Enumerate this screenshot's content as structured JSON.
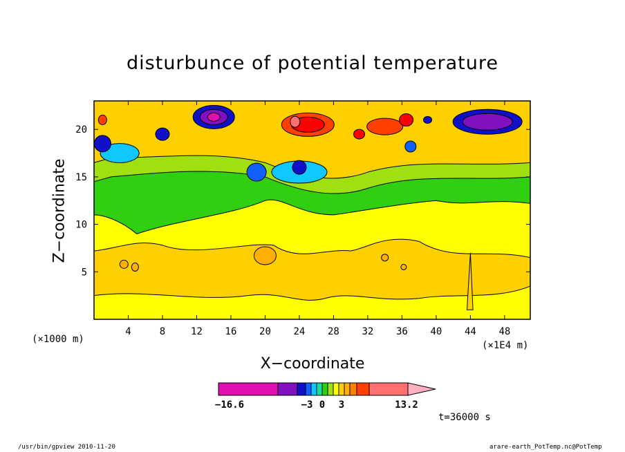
{
  "chart_data": {
    "type": "heatmap",
    "title": "disturbunce of potential temperature",
    "xlabel": "X−coordinate",
    "ylabel": "Z−coordinate",
    "x_unit_left": "(×1000 m)",
    "x_unit_right": "(×1E4 m)",
    "xlim": [
      0,
      51
    ],
    "ylim": [
      0,
      23
    ],
    "x_ticks": [
      4,
      8,
      12,
      16,
      20,
      24,
      28,
      32,
      36,
      40,
      44,
      48
    ],
    "y_ticks": [
      5,
      10,
      15,
      20
    ],
    "colorbar": {
      "levels": [
        -16.6,
        -3,
        0,
        3,
        13.2
      ],
      "labels": [
        "−16.6",
        "−3",
        "0",
        "3",
        "13.2"
      ],
      "colors": [
        "#e010b0",
        "#8010c0",
        "#1010c8",
        "#1060ff",
        "#10c8ff",
        "#10e0a0",
        "#30d010",
        "#a0e010",
        "#ffff00",
        "#ffd000",
        "#ffb000",
        "#ff8000",
        "#ff4000",
        "#ff0000",
        "#ff7070",
        "#ffb0c0"
      ]
    },
    "time_label": "t=36000 s"
  },
  "footer": {
    "left": "/usr/bin/gpview  2010-11-20",
    "right": "arare-earth_PotTemp.nc@PotTemp"
  }
}
